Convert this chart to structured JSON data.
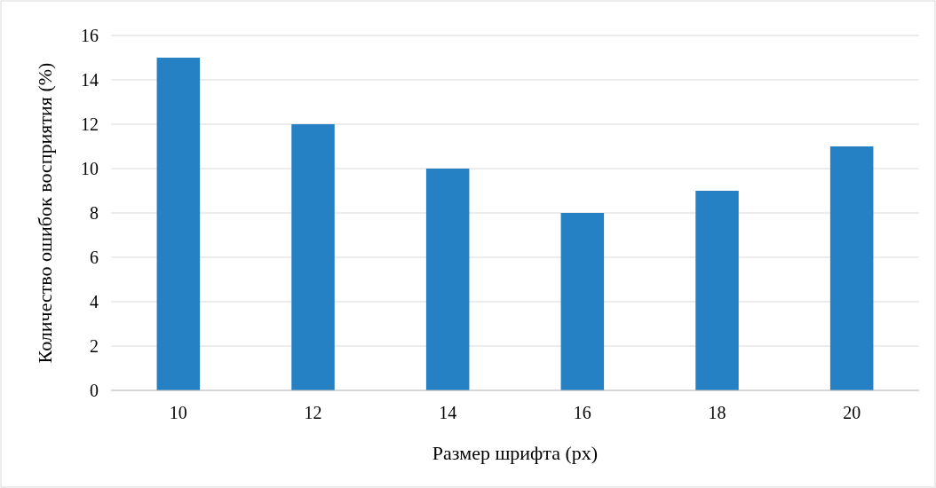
{
  "chart_data": {
    "type": "bar",
    "xlabel": "Размер шрифта (px)",
    "ylabel": "Количество ошибок восприятия (%)",
    "categories": [
      "10",
      "12",
      "14",
      "16",
      "18",
      "20"
    ],
    "values": [
      15,
      12,
      10,
      8,
      9,
      11
    ],
    "color": "#2681c4",
    "ylim": [
      0,
      16
    ],
    "yticks": [
      0,
      2,
      4,
      6,
      8,
      10,
      12,
      14,
      16
    ],
    "grid": "y"
  }
}
